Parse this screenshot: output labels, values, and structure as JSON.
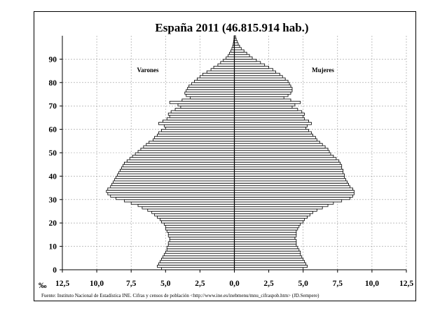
{
  "chart_data": {
    "type": "bar",
    "orientation": "horizontal",
    "layout": "population-pyramid",
    "title": "España 2011 (46.815.914 hab.)",
    "unit_label": "‰",
    "source": "Fuente: Instituto Nacional de Estadística INE. Cifras y censos de población <http://www.ine.es/inebmenu/mnu_cifraspob.htm> (JD.Sempere)",
    "xlim": [
      -12.5,
      12.5
    ],
    "ylim": [
      0,
      100
    ],
    "grid": true,
    "x_ticks": [
      "12,5",
      "10,0",
      "7,5",
      "5,0",
      "2,5",
      "0,0",
      "2,5",
      "5,0",
      "7,5",
      "10,0",
      "12,5"
    ],
    "y_ticks": [
      "0",
      "10",
      "20",
      "30",
      "40",
      "50",
      "60",
      "70",
      "80",
      "90"
    ],
    "series": [
      {
        "name": "Varones",
        "side": "left",
        "ages": [
          0,
          1,
          2,
          3,
          4,
          5,
          6,
          7,
          8,
          9,
          10,
          11,
          12,
          13,
          14,
          15,
          16,
          17,
          18,
          19,
          20,
          21,
          22,
          23,
          24,
          25,
          26,
          27,
          28,
          29,
          30,
          31,
          32,
          33,
          34,
          35,
          36,
          37,
          38,
          39,
          40,
          41,
          42,
          43,
          44,
          45,
          46,
          47,
          48,
          49,
          50,
          51,
          52,
          53,
          54,
          55,
          56,
          57,
          58,
          59,
          60,
          61,
          62,
          63,
          64,
          65,
          66,
          67,
          68,
          69,
          70,
          71,
          72,
          73,
          74,
          75,
          76,
          77,
          78,
          79,
          80,
          81,
          82,
          83,
          84,
          85,
          86,
          87,
          88,
          89,
          90,
          91,
          92,
          93,
          94,
          95,
          96,
          97,
          98,
          99
        ],
        "values": [
          5.3,
          5.6,
          5.5,
          5.4,
          5.3,
          5.2,
          5.1,
          5.0,
          4.9,
          4.9,
          4.8,
          4.8,
          4.7,
          4.7,
          4.8,
          4.8,
          4.9,
          5.0,
          5.0,
          5.1,
          5.3,
          5.4,
          5.6,
          5.8,
          6.0,
          6.3,
          6.7,
          7.0,
          7.5,
          8.0,
          8.6,
          9.0,
          9.2,
          9.3,
          9.2,
          9.0,
          8.9,
          8.8,
          8.7,
          8.6,
          8.5,
          8.4,
          8.3,
          8.2,
          8.1,
          8.0,
          7.8,
          7.6,
          7.4,
          7.2,
          7.0,
          6.8,
          6.6,
          6.4,
          6.2,
          5.9,
          5.8,
          5.6,
          5.5,
          5.3,
          5.0,
          5.1,
          5.5,
          5.2,
          4.9,
          4.7,
          4.8,
          4.6,
          4.3,
          3.9,
          4.1,
          4.7,
          3.8,
          3.2,
          3.5,
          3.6,
          3.5,
          3.4,
          3.3,
          3.1,
          2.9,
          2.7,
          2.5,
          2.3,
          2.0,
          1.7,
          1.5,
          1.2,
          1.0,
          0.8,
          0.6,
          0.45,
          0.35,
          0.25,
          0.18,
          0.12,
          0.08,
          0.05,
          0.03,
          0.02
        ]
      },
      {
        "name": "Mujeres",
        "side": "right",
        "ages": [
          0,
          1,
          2,
          3,
          4,
          5,
          6,
          7,
          8,
          9,
          10,
          11,
          12,
          13,
          14,
          15,
          16,
          17,
          18,
          19,
          20,
          21,
          22,
          23,
          24,
          25,
          26,
          27,
          28,
          29,
          30,
          31,
          32,
          33,
          34,
          35,
          36,
          37,
          38,
          39,
          40,
          41,
          42,
          43,
          44,
          45,
          46,
          47,
          48,
          49,
          50,
          51,
          52,
          53,
          54,
          55,
          56,
          57,
          58,
          59,
          60,
          61,
          62,
          63,
          64,
          65,
          66,
          67,
          68,
          69,
          70,
          71,
          72,
          73,
          74,
          75,
          76,
          77,
          78,
          79,
          80,
          81,
          82,
          83,
          84,
          85,
          86,
          87,
          88,
          89,
          90,
          91,
          92,
          93,
          94,
          95,
          96,
          97,
          98,
          99
        ],
        "values": [
          5.0,
          5.3,
          5.2,
          5.1,
          5.0,
          4.9,
          4.8,
          4.8,
          4.7,
          4.6,
          4.5,
          4.5,
          4.5,
          4.4,
          4.5,
          4.5,
          4.5,
          4.6,
          4.7,
          4.8,
          5.0,
          5.1,
          5.3,
          5.5,
          5.7,
          6.0,
          6.4,
          6.8,
          7.2,
          7.8,
          8.4,
          8.6,
          8.7,
          8.7,
          8.6,
          8.4,
          8.3,
          8.2,
          8.1,
          8.0,
          8.0,
          7.9,
          7.9,
          7.8,
          7.8,
          7.7,
          7.6,
          7.4,
          7.2,
          7.0,
          6.9,
          6.8,
          6.6,
          6.4,
          6.2,
          6.0,
          5.9,
          5.7,
          5.6,
          5.4,
          5.2,
          5.3,
          5.6,
          5.4,
          5.1,
          5.0,
          5.1,
          4.9,
          4.6,
          4.2,
          4.4,
          4.8,
          4.1,
          3.6,
          3.9,
          4.1,
          4.2,
          4.2,
          4.1,
          4.0,
          3.9,
          3.7,
          3.5,
          3.3,
          3.0,
          2.8,
          2.5,
          2.2,
          1.9,
          1.6,
          1.3,
          1.1,
          0.9,
          0.7,
          0.5,
          0.38,
          0.28,
          0.2,
          0.13,
          0.09
        ]
      }
    ]
  }
}
